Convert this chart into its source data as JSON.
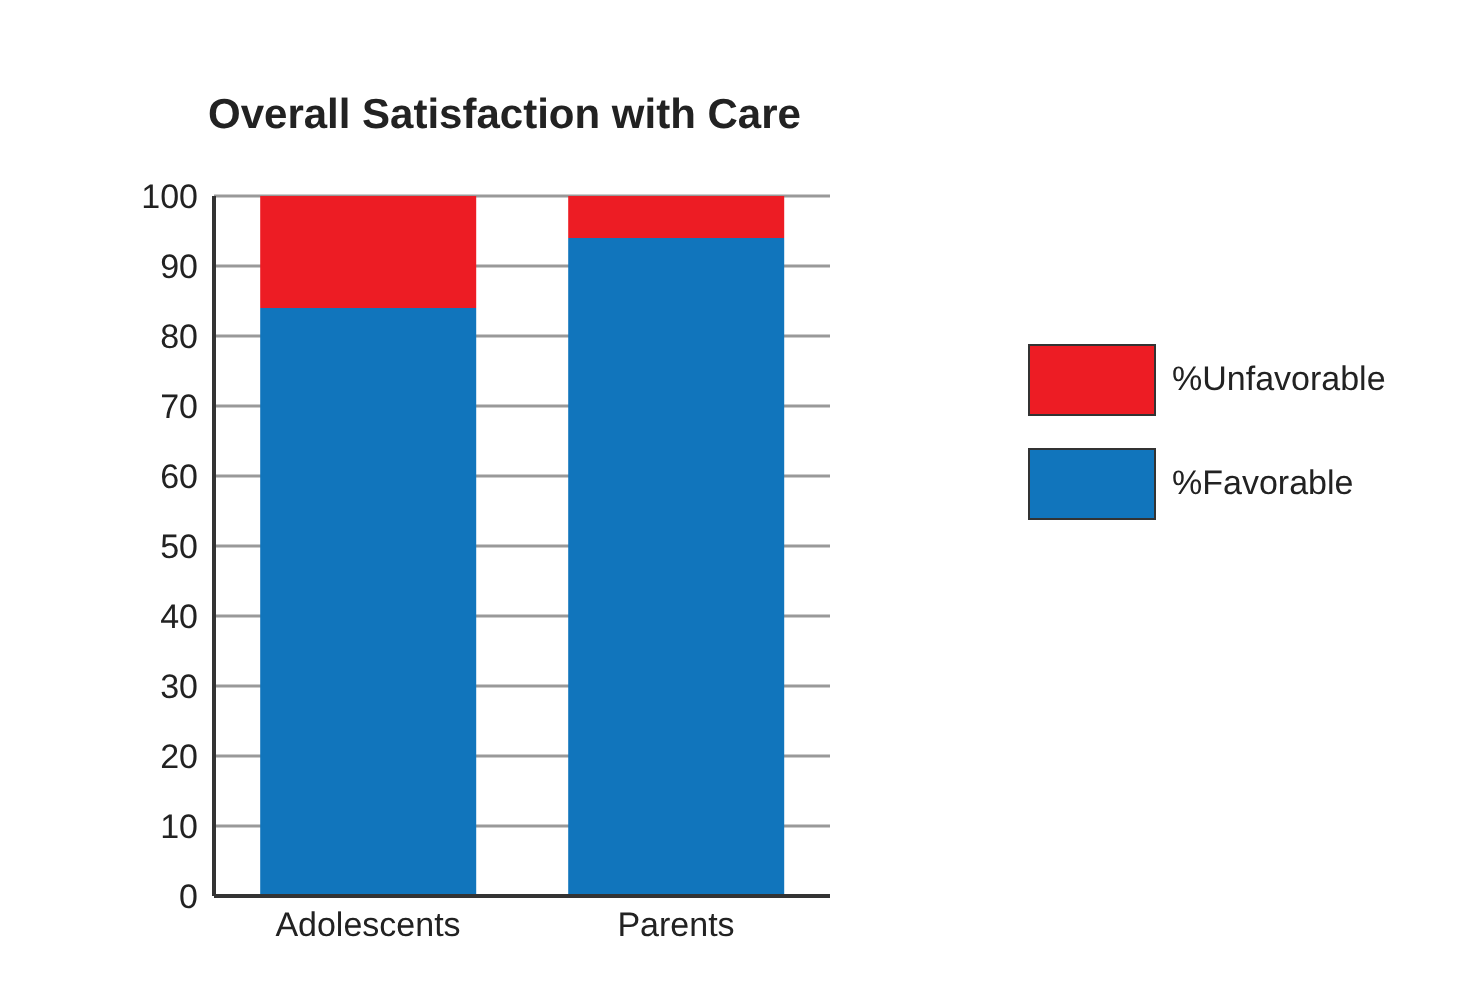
{
  "chart_data": {
    "type": "bar",
    "title": "Overall Satisfaction with Care",
    "categories": [
      "Adolescents",
      "Parents"
    ],
    "stacked": true,
    "series": [
      {
        "name": "%Favorable",
        "color": "#1175bc",
        "values": [
          84,
          94
        ]
      },
      {
        "name": "%Unfavorable",
        "color": "#ed1c24",
        "values": [
          16,
          6
        ]
      }
    ],
    "ylim": [
      0,
      100
    ],
    "yticks": [
      0,
      10,
      20,
      30,
      40,
      50,
      60,
      70,
      80,
      90,
      100
    ],
    "grid": "y",
    "legend": "right"
  }
}
